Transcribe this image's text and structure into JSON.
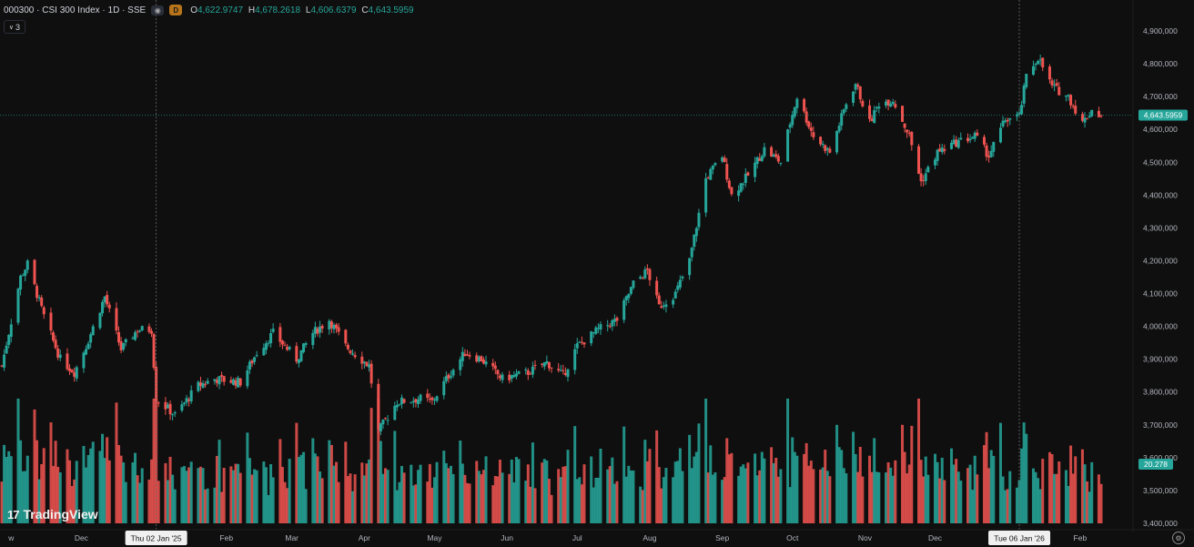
{
  "header": {
    "symbol": "000300 · CSI 300 Index · 1D · SSE",
    "badge": "D",
    "open_label": "O",
    "open": "4,622.9747",
    "high_label": "H",
    "high": "4,678.2618",
    "low_label": "L",
    "low": "4,606.6379",
    "close_label": "C",
    "close": "4,643.5959"
  },
  "indicator_toggle": "3",
  "brand": "TradingView",
  "colors": {
    "up": "#26a69a",
    "down": "#ef5350",
    "background": "#0f0f0f",
    "text": "#d1d4dc"
  },
  "crosshair_labels": [
    "Thu 02 Jan '25",
    "Tue 06 Jan '26"
  ],
  "price_label": "4,643.5959",
  "volume_label": "20.278",
  "chart_data": {
    "type": "candlestick",
    "price_ticks": [
      3400000,
      3500000,
      3600000,
      3700000,
      3800000,
      3900000,
      4000000,
      4100000,
      4200000,
      4300000,
      4400000,
      4500000,
      4600000,
      4700000,
      4800000,
      4900000
    ],
    "price_tick_labels": [
      "3,400,000",
      "3,500,000",
      "3,600,000",
      "3,700,000",
      "3,800,000",
      "3,900,000",
      "4,000,000",
      "4,100,000",
      "4,200,000",
      "4,300,000",
      "4,400,000",
      "4,500,000",
      "4,600,000",
      "4,700,000",
      "4,800,000",
      "4,900,000"
    ],
    "month_labels": [
      "w",
      "Dec",
      "Feb",
      "Mar",
      "Apr",
      "May",
      "Jun",
      "Jul",
      "Aug",
      "Sep",
      "Oct",
      "Nov",
      "Dec",
      "Feb"
    ],
    "month_starts": [
      "2024-11-01",
      "2024-12-01",
      "2025-02-01",
      "2025-03-01",
      "2025-04-01",
      "2025-05-01",
      "2025-06-01",
      "2025-07-01",
      "2025-08-01",
      "2025-09-01",
      "2025-10-01",
      "2025-11-01",
      "2025-12-01",
      "2026-02-01"
    ],
    "date_range": [
      "2024-10-28",
      "2026-02-10"
    ],
    "close_anchors": [
      [
        "2024-10-28",
        3880
      ],
      [
        "2024-11-05",
        4150
      ],
      [
        "2024-11-08",
        4190
      ],
      [
        "2024-11-15",
        4030
      ],
      [
        "2024-11-22",
        3900
      ],
      [
        "2024-11-28",
        3860
      ],
      [
        "2024-12-03",
        3940
      ],
      [
        "2024-12-11",
        4090
      ],
      [
        "2024-12-18",
        3930
      ],
      [
        "2024-12-25",
        3990
      ],
      [
        "2024-12-31",
        3990
      ],
      [
        "2025-01-02",
        3780
      ],
      [
        "2025-01-10",
        3730
      ],
      [
        "2025-01-20",
        3820
      ],
      [
        "2025-01-27",
        3840
      ],
      [
        "2025-02-07",
        3830
      ],
      [
        "2025-02-14",
        3920
      ],
      [
        "2025-02-21",
        3980
      ],
      [
        "2025-03-03",
        3900
      ],
      [
        "2025-03-10",
        3980
      ],
      [
        "2025-03-17",
        4020
      ],
      [
        "2025-03-24",
        3940
      ],
      [
        "2025-04-03",
        3880
      ],
      [
        "2025-04-07",
        3680
      ],
      [
        "2025-04-15",
        3770
      ],
      [
        "2025-04-25",
        3780
      ],
      [
        "2025-04-30",
        3770
      ],
      [
        "2025-05-07",
        3850
      ],
      [
        "2025-05-14",
        3920
      ],
      [
        "2025-05-21",
        3900
      ],
      [
        "2025-05-30",
        3840
      ],
      [
        "2025-06-10",
        3860
      ],
      [
        "2025-06-18",
        3890
      ],
      [
        "2025-06-25",
        3850
      ],
      [
        "2025-07-01",
        3940
      ],
      [
        "2025-07-10",
        3990
      ],
      [
        "2025-07-18",
        4020
      ],
      [
        "2025-07-25",
        4130
      ],
      [
        "2025-07-31",
        4170
      ],
      [
        "2025-08-05",
        4060
      ],
      [
        "2025-08-12",
        4100
      ],
      [
        "2025-08-18",
        4200
      ],
      [
        "2025-08-25",
        4450
      ],
      [
        "2025-09-01",
        4520
      ],
      [
        "2025-09-05",
        4400
      ],
      [
        "2025-09-12",
        4460
      ],
      [
        "2025-09-19",
        4540
      ],
      [
        "2025-09-26",
        4500
      ],
      [
        "2025-09-30",
        4620
      ],
      [
        "2025-10-03",
        4700
      ],
      [
        "2025-10-10",
        4580
      ],
      [
        "2025-10-17",
        4530
      ],
      [
        "2025-10-24",
        4680
      ],
      [
        "2025-10-28",
        4740
      ],
      [
        "2025-11-03",
        4620
      ],
      [
        "2025-11-07",
        4680
      ],
      [
        "2025-11-13",
        4690
      ],
      [
        "2025-11-20",
        4580
      ],
      [
        "2025-11-25",
        4440
      ],
      [
        "2025-12-02",
        4530
      ],
      [
        "2025-12-10",
        4560
      ],
      [
        "2025-12-18",
        4580
      ],
      [
        "2025-12-24",
        4520
      ],
      [
        "2025-12-31",
        4630
      ],
      [
        "2026-01-06",
        4640
      ],
      [
        "2026-01-09",
        4760
      ],
      [
        "2026-01-14",
        4820
      ],
      [
        "2026-01-20",
        4730
      ],
      [
        "2026-01-27",
        4700
      ],
      [
        "2026-02-02",
        4620
      ],
      [
        "2026-02-06",
        4660
      ],
      [
        "2026-02-10",
        4640
      ]
    ],
    "volume_scale": {
      "baseline": 3400000,
      "max": 3780000
    }
  }
}
